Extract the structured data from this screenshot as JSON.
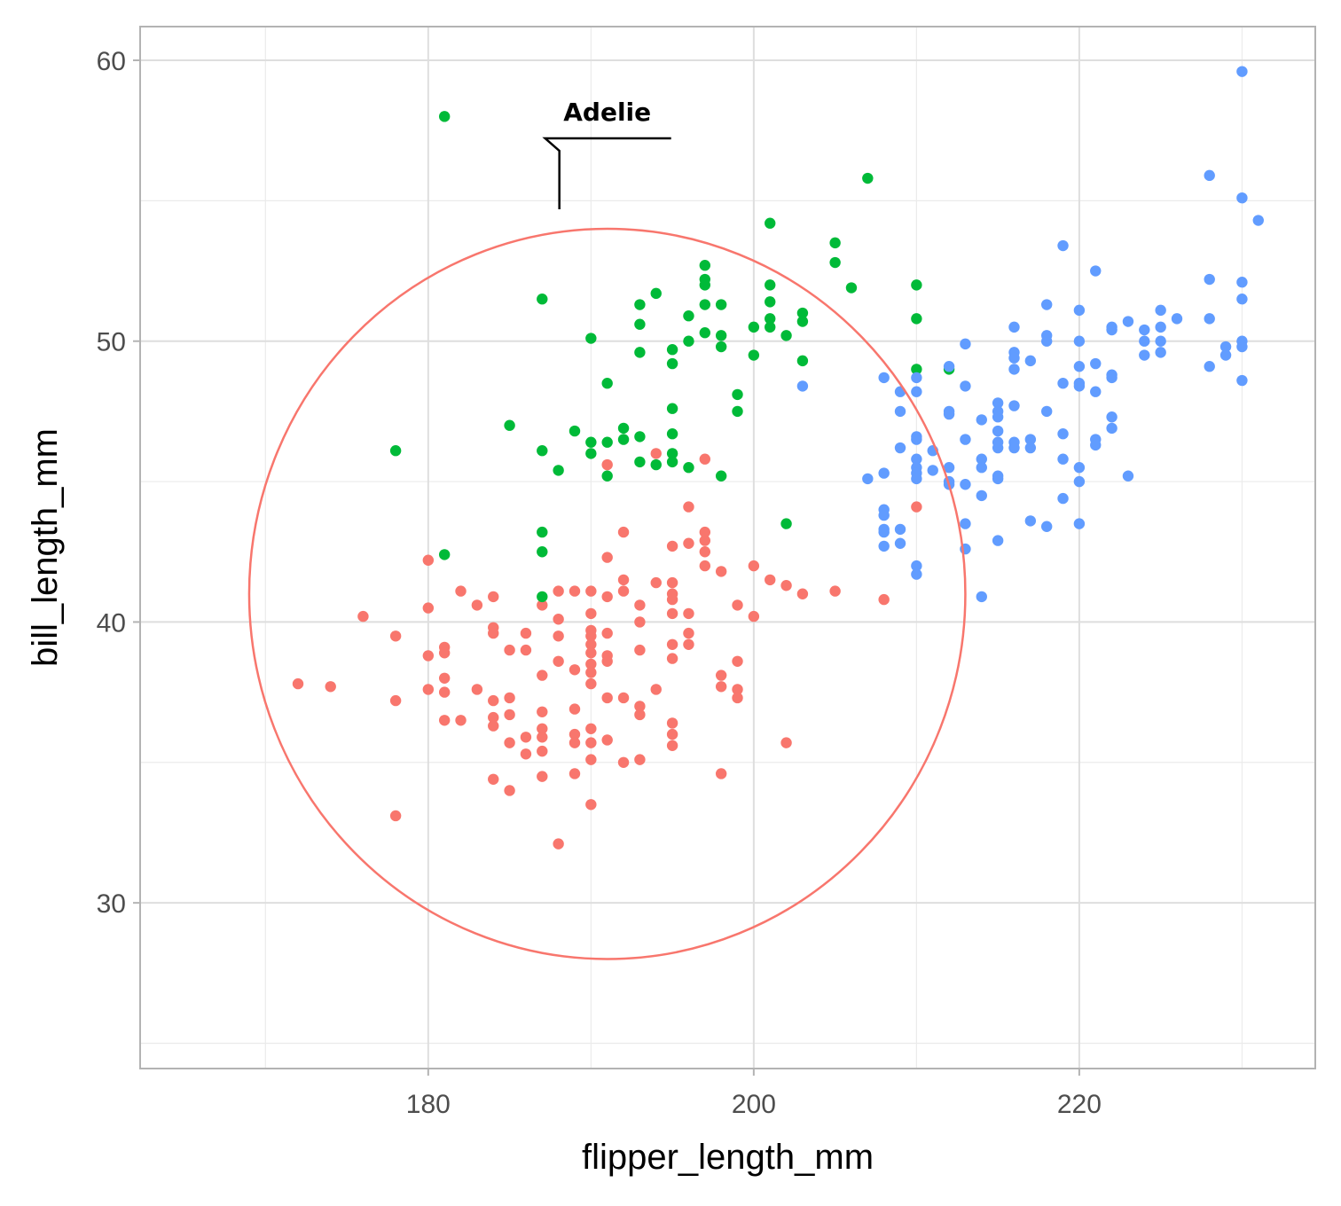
{
  "chart_data": {
    "type": "scatter",
    "title": "",
    "xlabel": "flipper_length_mm",
    "ylabel": "bill_length_mm",
    "xlim": [
      162.3,
      234.5
    ],
    "ylim": [
      24.1,
      61.2
    ],
    "xticks": [
      180,
      200,
      220
    ],
    "yticks": [
      30,
      40,
      50,
      60
    ],
    "grid": true,
    "legend": "none",
    "colors": {
      "adelie": "#F8766D",
      "chinstrap": "#00BA38",
      "gentoo": "#619CFF"
    },
    "series": [
      {
        "color": "#F8766D",
        "points": [
          [
            172,
            37.8
          ],
          [
            174,
            37.7
          ],
          [
            176,
            40.2
          ],
          [
            178,
            39.5
          ],
          [
            178,
            37.2
          ],
          [
            178,
            33.1
          ],
          [
            180,
            42.2
          ],
          [
            180,
            40.5
          ],
          [
            180,
            38.8
          ],
          [
            180,
            37.6
          ],
          [
            181,
            39.1
          ],
          [
            181,
            38.9
          ],
          [
            181,
            38.0
          ],
          [
            181,
            37.5
          ],
          [
            181,
            36.5
          ],
          [
            182,
            41.1
          ],
          [
            182,
            36.5
          ],
          [
            183,
            40.6
          ],
          [
            183,
            37.6
          ],
          [
            184,
            40.9
          ],
          [
            184,
            39.8
          ],
          [
            184,
            39.6
          ],
          [
            184,
            37.2
          ],
          [
            184,
            36.6
          ],
          [
            184,
            36.3
          ],
          [
            184,
            34.4
          ],
          [
            185,
            39.0
          ],
          [
            185,
            37.3
          ],
          [
            185,
            36.7
          ],
          [
            185,
            35.7
          ],
          [
            185,
            34.0
          ],
          [
            186,
            39.6
          ],
          [
            186,
            39.0
          ],
          [
            186,
            35.9
          ],
          [
            186,
            35.3
          ],
          [
            187,
            40.6
          ],
          [
            187,
            38.1
          ],
          [
            187,
            36.8
          ],
          [
            187,
            36.2
          ],
          [
            187,
            35.9
          ],
          [
            187,
            35.4
          ],
          [
            187,
            34.5
          ],
          [
            188,
            41.1
          ],
          [
            188,
            40.1
          ],
          [
            188,
            39.5
          ],
          [
            188,
            38.6
          ],
          [
            188,
            32.1
          ],
          [
            189,
            41.1
          ],
          [
            189,
            38.3
          ],
          [
            189,
            36.9
          ],
          [
            189,
            36.0
          ],
          [
            189,
            35.7
          ],
          [
            189,
            34.6
          ],
          [
            190,
            41.1
          ],
          [
            190,
            40.3
          ],
          [
            190,
            39.7
          ],
          [
            190,
            39.5
          ],
          [
            190,
            39.2
          ],
          [
            190,
            38.9
          ],
          [
            190,
            38.5
          ],
          [
            190,
            38.2
          ],
          [
            190,
            37.8
          ],
          [
            190,
            36.2
          ],
          [
            190,
            35.7
          ],
          [
            190,
            35.1
          ],
          [
            190,
            33.5
          ],
          [
            191,
            45.6
          ],
          [
            191,
            42.3
          ],
          [
            191,
            40.9
          ],
          [
            191,
            39.6
          ],
          [
            191,
            38.8
          ],
          [
            191,
            38.6
          ],
          [
            191,
            37.3
          ],
          [
            191,
            35.8
          ],
          [
            192,
            43.2
          ],
          [
            192,
            41.5
          ],
          [
            192,
            41.1
          ],
          [
            192,
            37.3
          ],
          [
            192,
            35.0
          ],
          [
            193,
            40.6
          ],
          [
            193,
            40.0
          ],
          [
            193,
            39.0
          ],
          [
            193,
            37.0
          ],
          [
            193,
            36.7
          ],
          [
            193,
            35.1
          ],
          [
            194,
            46.0
          ],
          [
            194,
            41.4
          ],
          [
            194,
            37.6
          ],
          [
            195,
            42.7
          ],
          [
            195,
            41.4
          ],
          [
            195,
            41.0
          ],
          [
            195,
            40.8
          ],
          [
            195,
            40.3
          ],
          [
            195,
            39.2
          ],
          [
            195,
            38.7
          ],
          [
            195,
            36.4
          ],
          [
            195,
            36.0
          ],
          [
            195,
            35.6
          ],
          [
            196,
            44.1
          ],
          [
            196,
            42.8
          ],
          [
            196,
            40.3
          ],
          [
            196,
            39.6
          ],
          [
            196,
            39.2
          ],
          [
            197,
            45.8
          ],
          [
            197,
            43.2
          ],
          [
            197,
            42.9
          ],
          [
            197,
            42.5
          ],
          [
            197,
            42.0
          ],
          [
            198,
            41.8
          ],
          [
            198,
            38.1
          ],
          [
            198,
            37.7
          ],
          [
            198,
            34.6
          ],
          [
            199,
            40.6
          ],
          [
            199,
            38.6
          ],
          [
            199,
            37.6
          ],
          [
            199,
            37.3
          ],
          [
            200,
            42.0
          ],
          [
            200,
            40.2
          ],
          [
            201,
            41.5
          ],
          [
            202,
            41.3
          ],
          [
            202,
            35.7
          ],
          [
            203,
            41.0
          ],
          [
            205,
            41.1
          ],
          [
            208,
            40.8
          ],
          [
            210,
            44.1
          ]
        ]
      },
      {
        "color": "#00BA38",
        "points": [
          [
            178,
            46.1
          ],
          [
            181,
            58.0
          ],
          [
            181,
            42.4
          ],
          [
            185,
            47.0
          ],
          [
            187,
            51.5
          ],
          [
            187,
            46.1
          ],
          [
            187,
            43.2
          ],
          [
            187,
            42.5
          ],
          [
            187,
            40.9
          ],
          [
            188,
            45.4
          ],
          [
            189,
            46.8
          ],
          [
            190,
            50.1
          ],
          [
            190,
            46.4
          ],
          [
            190,
            46.0
          ],
          [
            191,
            48.5
          ],
          [
            191,
            46.4
          ],
          [
            191,
            45.2
          ],
          [
            192,
            46.9
          ],
          [
            192,
            46.5
          ],
          [
            193,
            51.3
          ],
          [
            193,
            50.6
          ],
          [
            193,
            49.6
          ],
          [
            193,
            46.6
          ],
          [
            193,
            45.7
          ],
          [
            194,
            51.7
          ],
          [
            194,
            45.6
          ],
          [
            195,
            49.7
          ],
          [
            195,
            49.2
          ],
          [
            195,
            47.6
          ],
          [
            195,
            46.7
          ],
          [
            195,
            46.0
          ],
          [
            195,
            45.7
          ],
          [
            196,
            50.9
          ],
          [
            196,
            50.0
          ],
          [
            196,
            45.5
          ],
          [
            197,
            52.7
          ],
          [
            197,
            52.2
          ],
          [
            197,
            52.0
          ],
          [
            197,
            51.3
          ],
          [
            197,
            50.3
          ],
          [
            198,
            51.3
          ],
          [
            198,
            50.2
          ],
          [
            198,
            49.8
          ],
          [
            198,
            45.2
          ],
          [
            199,
            48.1
          ],
          [
            199,
            47.5
          ],
          [
            200,
            50.5
          ],
          [
            200,
            49.5
          ],
          [
            201,
            54.2
          ],
          [
            201,
            52.0
          ],
          [
            201,
            51.4
          ],
          [
            201,
            50.8
          ],
          [
            201,
            50.5
          ],
          [
            202,
            50.2
          ],
          [
            202,
            43.5
          ],
          [
            203,
            51.0
          ],
          [
            203,
            50.7
          ],
          [
            203,
            49.3
          ],
          [
            205,
            53.5
          ],
          [
            205,
            52.8
          ],
          [
            206,
            51.9
          ],
          [
            207,
            55.8
          ],
          [
            210,
            52.0
          ],
          [
            210,
            50.8
          ],
          [
            210,
            49.0
          ],
          [
            212,
            49.0
          ]
        ]
      },
      {
        "color": "#619CFF",
        "points": [
          [
            203,
            48.4
          ],
          [
            207,
            45.1
          ],
          [
            208,
            48.7
          ],
          [
            208,
            45.3
          ],
          [
            208,
            44.0
          ],
          [
            208,
            43.8
          ],
          [
            208,
            43.3
          ],
          [
            208,
            43.2
          ],
          [
            208,
            42.7
          ],
          [
            209,
            48.2
          ],
          [
            209,
            47.5
          ],
          [
            209,
            46.2
          ],
          [
            209,
            43.3
          ],
          [
            209,
            42.8
          ],
          [
            210,
            48.7
          ],
          [
            210,
            48.2
          ],
          [
            210,
            46.6
          ],
          [
            210,
            46.5
          ],
          [
            210,
            45.8
          ],
          [
            210,
            45.5
          ],
          [
            210,
            45.3
          ],
          [
            210,
            45.1
          ],
          [
            210,
            42.0
          ],
          [
            210,
            41.7
          ],
          [
            211,
            46.1
          ],
          [
            211,
            45.4
          ],
          [
            212,
            49.1
          ],
          [
            212,
            45.5
          ],
          [
            212,
            45.0
          ],
          [
            212,
            44.9
          ],
          [
            212,
            47.5
          ],
          [
            212,
            47.4
          ],
          [
            213,
            49.9
          ],
          [
            213,
            48.4
          ],
          [
            213,
            46.5
          ],
          [
            213,
            44.9
          ],
          [
            213,
            43.5
          ],
          [
            213,
            42.6
          ],
          [
            214,
            47.2
          ],
          [
            214,
            45.8
          ],
          [
            214,
            45.5
          ],
          [
            214,
            44.5
          ],
          [
            214,
            40.9
          ],
          [
            215,
            47.8
          ],
          [
            215,
            47.5
          ],
          [
            215,
            46.8
          ],
          [
            215,
            46.2
          ],
          [
            215,
            45.2
          ],
          [
            215,
            45.1
          ],
          [
            215,
            42.9
          ],
          [
            215,
            47.3
          ],
          [
            215,
            46.4
          ],
          [
            216,
            50.5
          ],
          [
            216,
            49.6
          ],
          [
            216,
            49.4
          ],
          [
            216,
            49.0
          ],
          [
            216,
            47.7
          ],
          [
            216,
            46.4
          ],
          [
            216,
            46.2
          ],
          [
            217,
            49.3
          ],
          [
            217,
            46.5
          ],
          [
            217,
            46.2
          ],
          [
            217,
            43.6
          ],
          [
            218,
            51.3
          ],
          [
            218,
            50.2
          ],
          [
            218,
            50.0
          ],
          [
            218,
            47.5
          ],
          [
            218,
            43.4
          ],
          [
            219,
            53.4
          ],
          [
            219,
            48.5
          ],
          [
            219,
            46.7
          ],
          [
            219,
            45.8
          ],
          [
            219,
            44.4
          ],
          [
            220,
            51.1
          ],
          [
            220,
            50.0
          ],
          [
            220,
            49.1
          ],
          [
            220,
            48.5
          ],
          [
            220,
            48.4
          ],
          [
            220,
            45.5
          ],
          [
            220,
            45.0
          ],
          [
            220,
            43.5
          ],
          [
            221,
            52.5
          ],
          [
            221,
            49.2
          ],
          [
            221,
            48.2
          ],
          [
            221,
            46.5
          ],
          [
            221,
            46.3
          ],
          [
            222,
            50.5
          ],
          [
            222,
            50.4
          ],
          [
            222,
            48.8
          ],
          [
            222,
            48.7
          ],
          [
            222,
            47.3
          ],
          [
            222,
            46.9
          ],
          [
            223,
            50.7
          ],
          [
            223,
            45.2
          ],
          [
            224,
            50.4
          ],
          [
            224,
            50.0
          ],
          [
            224,
            49.5
          ],
          [
            225,
            51.1
          ],
          [
            225,
            50.5
          ],
          [
            225,
            50.0
          ],
          [
            225,
            49.6
          ],
          [
            226,
            50.8
          ],
          [
            228,
            55.9
          ],
          [
            228,
            52.2
          ],
          [
            228,
            50.8
          ],
          [
            228,
            49.1
          ],
          [
            229,
            49.8
          ],
          [
            229,
            49.5
          ],
          [
            230,
            59.6
          ],
          [
            230,
            55.1
          ],
          [
            230,
            52.1
          ],
          [
            230,
            51.5
          ],
          [
            230,
            50.0
          ],
          [
            230,
            49.8
          ],
          [
            230,
            48.6
          ],
          [
            231,
            54.3
          ]
        ]
      }
    ],
    "annotation": {
      "shape": "circle",
      "label": "Adelie",
      "color": "#F8766D",
      "center": [
        191,
        41.0
      ],
      "radius_x": 22.0,
      "radius_y": 13.0
    }
  }
}
